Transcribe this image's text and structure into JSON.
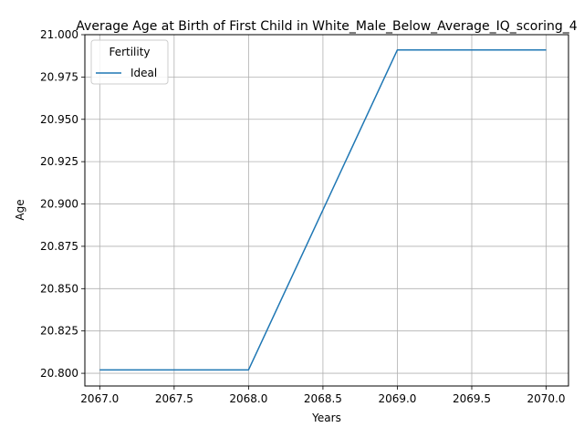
{
  "chart_data": {
    "type": "line",
    "title": "Average Age at Birth of First Child in White_Male_Below_Average_IQ_scoring_4",
    "xlabel": "Years",
    "ylabel": "Age",
    "xlim": [
      2066.9,
      2070.15
    ],
    "ylim": [
      20.7925,
      21.0
    ],
    "xticks": [
      "2067.0",
      "2067.5",
      "2068.0",
      "2068.5",
      "2069.0",
      "2069.5",
      "2070.0"
    ],
    "yticks": [
      "20.800",
      "20.825",
      "20.850",
      "20.875",
      "20.900",
      "20.925",
      "20.950",
      "20.975",
      "21.000"
    ],
    "grid": true,
    "legend": {
      "title": "Fertility",
      "placement": "top-left"
    },
    "series": [
      {
        "name": "Ideal",
        "color": "#1f77b4",
        "x": [
          2067,
          2068,
          2069,
          2070
        ],
        "y": [
          20.802,
          20.802,
          20.991,
          20.991
        ]
      }
    ]
  }
}
